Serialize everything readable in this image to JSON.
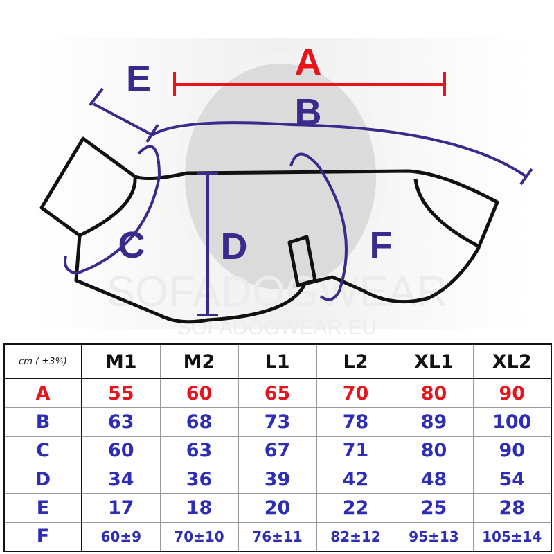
{
  "diagram": {
    "labels": {
      "A": "A",
      "B": "B",
      "C": "C",
      "D": "D",
      "E": "E",
      "F": "F"
    },
    "watermark": [
      "SOFADOGWEAR",
      "SOFADOGWEAR.EU"
    ],
    "colors": {
      "A": "#e8141c",
      "measure": "#3a2a8c",
      "outline": "#111111"
    }
  },
  "table": {
    "unit_label": "cm ( ±3%)",
    "sizes": [
      "M1",
      "M2",
      "L1",
      "L2",
      "XL1",
      "XL2"
    ],
    "rows": [
      {
        "label": "A",
        "color": "#e8141c",
        "values": [
          "55",
          "60",
          "65",
          "70",
          "80",
          "90"
        ]
      },
      {
        "label": "B",
        "color": "#2d2db8",
        "values": [
          "63",
          "68",
          "73",
          "78",
          "89",
          "100"
        ]
      },
      {
        "label": "C",
        "color": "#2d2db8",
        "values": [
          "60",
          "63",
          "67",
          "71",
          "80",
          "90"
        ]
      },
      {
        "label": "D",
        "color": "#2d2db8",
        "values": [
          "34",
          "36",
          "39",
          "42",
          "48",
          "54"
        ]
      },
      {
        "label": "E",
        "color": "#2d2db8",
        "values": [
          "17",
          "18",
          "20",
          "22",
          "25",
          "28"
        ]
      },
      {
        "label": "F",
        "color": "#2d2db8",
        "values": [
          "60±9",
          "70±10",
          "76±11",
          "82±12",
          "95±13",
          "105±14"
        ]
      }
    ]
  }
}
